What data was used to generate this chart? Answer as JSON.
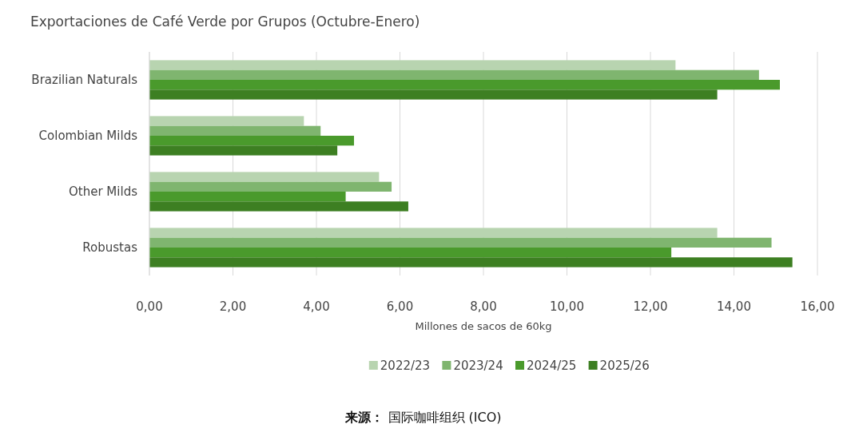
{
  "chart_data": {
    "type": "bar",
    "orientation": "horizontal",
    "title": "Exportaciones de Café Verde por Grupos (Octubre-Enero)",
    "xlabel": "Millones de sacos de 60kg",
    "categories": [
      "Brazilian Naturals",
      "Colombian Milds",
      "Other Milds",
      "Robustas"
    ],
    "series": [
      {
        "name": "2022/23",
        "color": "#b8d4b0",
        "values": [
          12.6,
          3.7,
          5.5,
          13.6
        ]
      },
      {
        "name": "2023/24",
        "color": "#7fb56f",
        "values": [
          14.6,
          4.1,
          5.8,
          14.9
        ]
      },
      {
        "name": "2024/25",
        "color": "#4a9a2c",
        "values": [
          15.1,
          4.9,
          4.7,
          12.5
        ]
      },
      {
        "name": "2025/26",
        "color": "#3d7f22",
        "values": [
          13.6,
          4.5,
          6.2,
          15.4
        ]
      }
    ],
    "xlim": [
      0,
      16
    ],
    "xticks": [
      {
        "value": 0,
        "label": "0,00"
      },
      {
        "value": 2,
        "label": "2,00"
      },
      {
        "value": 4,
        "label": "4,00"
      },
      {
        "value": 6,
        "label": "6,00"
      },
      {
        "value": 8,
        "label": "8,00"
      },
      {
        "value": 10,
        "label": "10,00"
      },
      {
        "value": 12,
        "label": "12,00"
      },
      {
        "value": 14,
        "label": "14,00"
      },
      {
        "value": 16,
        "label": "16,00"
      }
    ],
    "grid": "x",
    "legend": "bottom",
    "annotations": [
      "**来源：** 国际咖啡组织 (ICO)"
    ]
  }
}
